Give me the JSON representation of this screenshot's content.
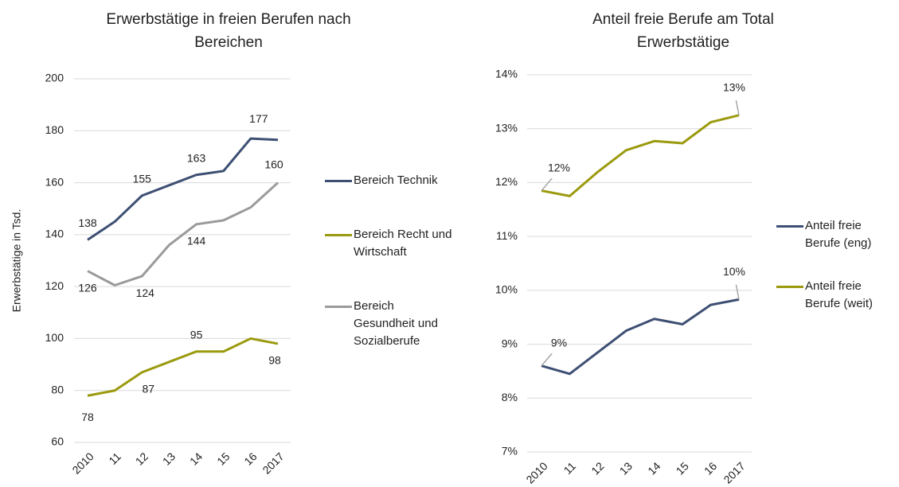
{
  "chart_data": [
    {
      "type": "line",
      "title": "Erwerbstätige in freien Berufen nach Bereichen",
      "y_label": "Erwerbstätige in Tsd.",
      "categories": [
        "2010",
        "11",
        "12",
        "13",
        "14",
        "15",
        "16",
        "2017"
      ],
      "ylim": [
        60,
        200
      ],
      "yticks": [
        60,
        80,
        100,
        120,
        140,
        160,
        180,
        200
      ],
      "grid": true,
      "series": [
        {
          "name": "Bereich Technik",
          "color": "#3d4f73",
          "values": [
            138,
            145,
            155,
            159,
            163,
            164.5,
            177,
            176.5
          ],
          "value_labels": [
            "138",
            null,
            "155",
            null,
            "163",
            null,
            "177",
            null
          ]
        },
        {
          "name": "Bereich Recht und Wirtschaft",
          "color": "#9b9a0e",
          "values": [
            78,
            80,
            87,
            91,
            95,
            95,
            100,
            98
          ],
          "value_labels": [
            "78",
            null,
            "87",
            null,
            "95",
            null,
            null,
            "98"
          ]
        },
        {
          "name": "Bereich Gesundheit und Sozialberufe",
          "color": "#9a9a9a",
          "values": [
            126,
            120.5,
            124,
            136,
            144,
            145.5,
            150.5,
            160
          ],
          "value_labels": [
            "126",
            null,
            "124",
            null,
            "144",
            null,
            null,
            "160"
          ]
        }
      ]
    },
    {
      "type": "line",
      "title": "Anteil freie Berufe am Total Erwerbstätige",
      "categories": [
        "2010",
        "11",
        "12",
        "13",
        "14",
        "15",
        "16",
        "2017"
      ],
      "ylim": [
        7,
        14
      ],
      "yticks": [
        {
          "value": 7,
          "label": "7%"
        },
        {
          "value": 8,
          "label": "8%"
        },
        {
          "value": 9,
          "label": "9%"
        },
        {
          "value": 10,
          "label": "10%"
        },
        {
          "value": 11,
          "label": "11%"
        },
        {
          "value": 12,
          "label": "12%"
        },
        {
          "value": 13,
          "label": "13%"
        },
        {
          "value": 14,
          "label": "14%"
        }
      ],
      "grid": true,
      "series": [
        {
          "name": "Anteil freie Berufe (eng)",
          "color": "#3d4f73",
          "values": [
            8.6,
            8.45,
            8.85,
            9.25,
            9.47,
            9.37,
            9.73,
            9.83
          ],
          "value_labels": [
            "9%",
            null,
            null,
            null,
            null,
            null,
            null,
            "10%"
          ]
        },
        {
          "name": "Anteil freie Berufe (weit)",
          "color": "#9b9a0e",
          "values": [
            11.85,
            11.75,
            12.2,
            12.6,
            12.77,
            12.73,
            13.12,
            13.25
          ],
          "value_labels": [
            "12%",
            null,
            null,
            null,
            null,
            null,
            null,
            "13%"
          ]
        }
      ]
    }
  ]
}
